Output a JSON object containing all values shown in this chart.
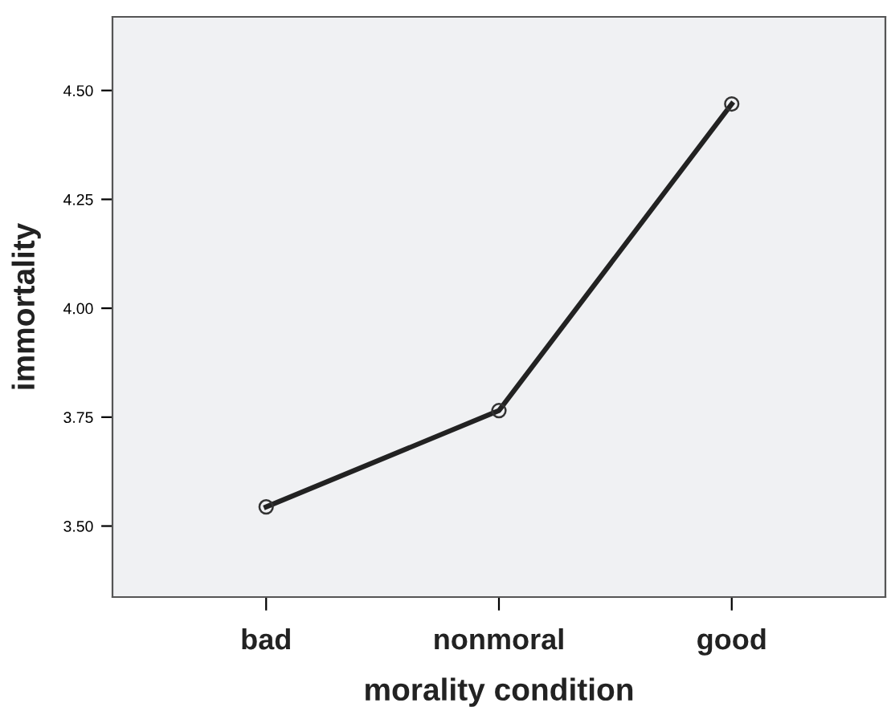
{
  "chart_data": {
    "type": "line",
    "xlabel": "morality condition",
    "ylabel": "immortality",
    "categories": [
      "bad",
      "nonmoral",
      "good"
    ],
    "series": [
      {
        "color": "#222222",
        "values": [
          3.544,
          3.765,
          4.469
        ]
      }
    ],
    "ylim": [
      3.337,
      4.669
    ],
    "yticks": [
      {
        "value": 3.5,
        "label": "3.50"
      },
      {
        "value": 3.75,
        "label": "3.75"
      },
      {
        "value": 4.0,
        "label": "4.00"
      },
      {
        "value": 4.25,
        "label": "4.25"
      },
      {
        "value": 4.5,
        "label": "4.50"
      }
    ],
    "grid": false,
    "marker": "circle",
    "line_style": "solid"
  }
}
